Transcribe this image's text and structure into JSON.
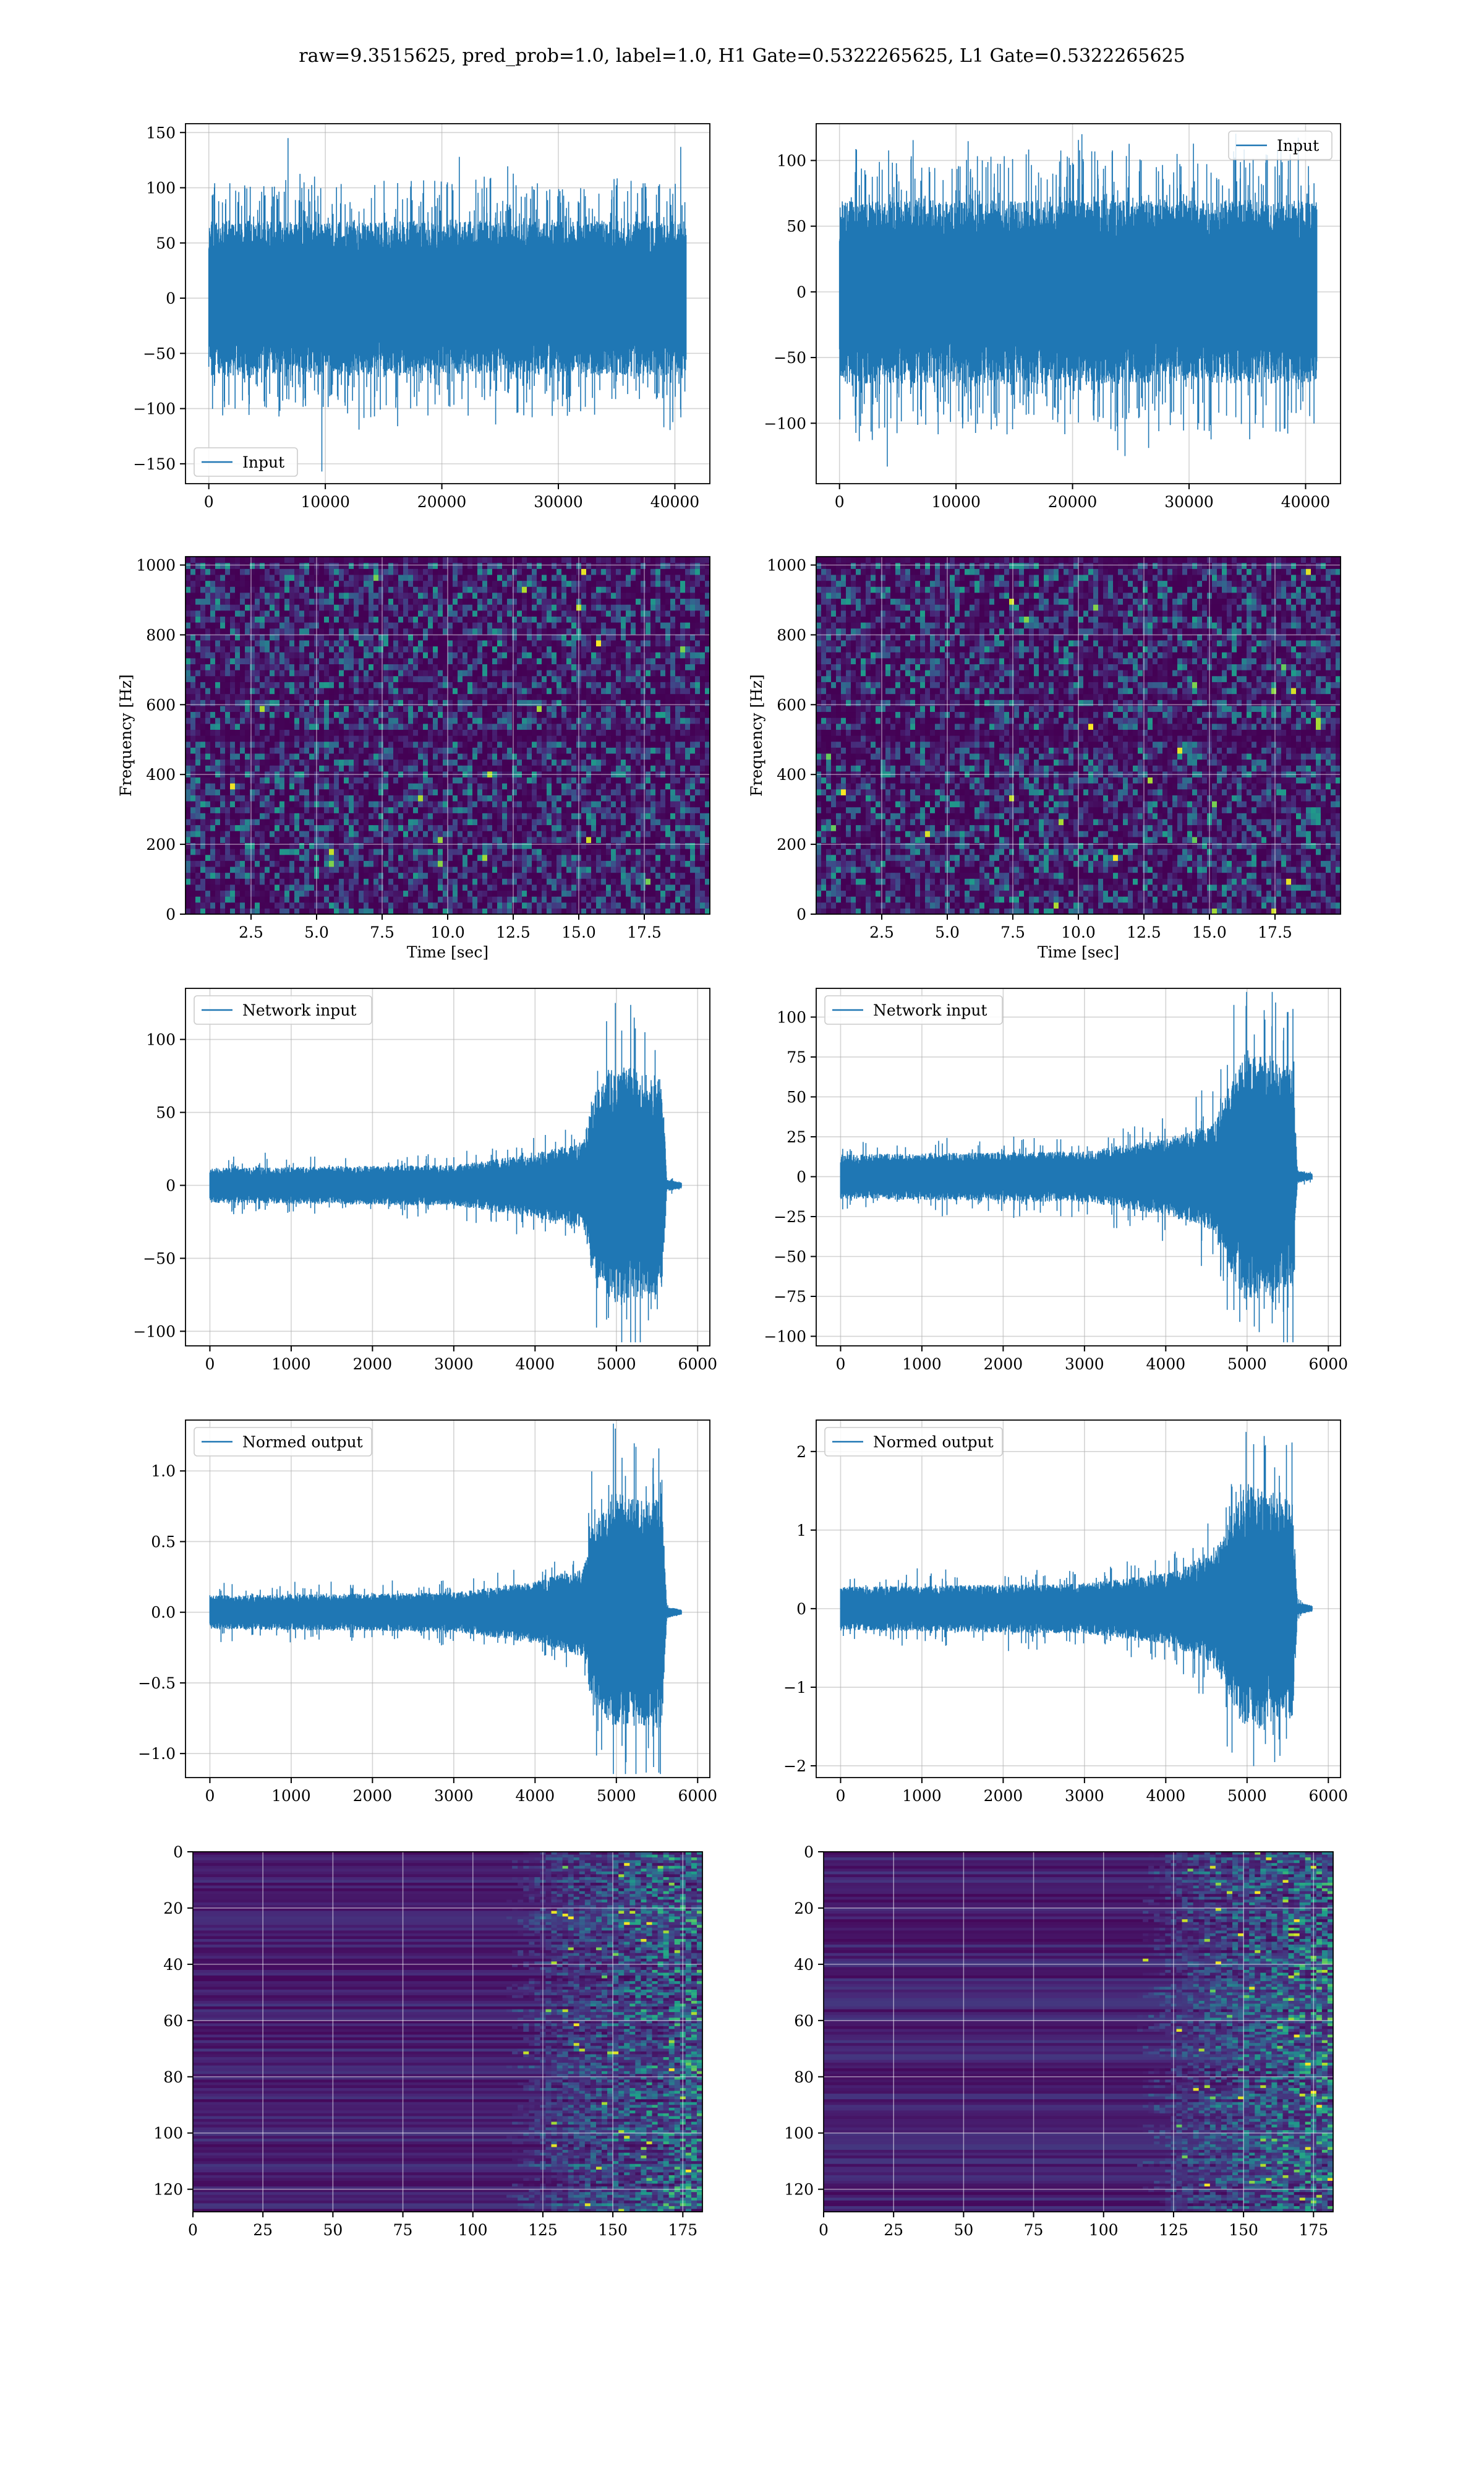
{
  "figure": {
    "suptitle": "raw=9.3515625, pred_prob=1.0, label=1.0, H1 Gate=0.5322265625, L1 Gate=0.5322265625"
  },
  "colors": {
    "line": "#1f77b4",
    "grid": "#b0b0b0",
    "viridis_low": "#440154",
    "viridis_mid": "#21918c",
    "viridis_high": "#fde725"
  },
  "chart_data": [
    {
      "id": "h1-input",
      "type": "line",
      "legend": "Input",
      "legend_loc": "lower-left",
      "xlim": [
        -2000,
        43000
      ],
      "ylim": [
        -168,
        158
      ],
      "xticks": [
        0,
        10000,
        20000,
        30000,
        40000
      ],
      "yticks": [
        -150,
        -100,
        -50,
        0,
        50,
        100,
        150
      ],
      "signal": {
        "x_start": 0,
        "x_end": 40960,
        "core_amp": 70,
        "spikes": [
          [
            6800,
            145
          ],
          [
            9700,
            -157
          ],
          [
            21500,
            128
          ],
          [
            40500,
            137
          ]
        ]
      }
    },
    {
      "id": "l1-input",
      "type": "line",
      "legend": "Input",
      "legend_loc": "upper-right",
      "xlim": [
        -2000,
        43000
      ],
      "ylim": [
        -146,
        128
      ],
      "xticks": [
        0,
        10000,
        20000,
        30000,
        40000
      ],
      "yticks": [
        -100,
        -50,
        0,
        50,
        100
      ],
      "signal": {
        "x_start": 0,
        "x_end": 40960,
        "core_amp": 70,
        "spikes": [
          [
            4100,
            -133
          ],
          [
            20800,
            120
          ],
          [
            24500,
            -125
          ]
        ]
      }
    },
    {
      "id": "h1-spectrogram",
      "type": "heatmap",
      "xlabel": "Time [sec]",
      "ylabel": "Frequency [Hz]",
      "xlim": [
        0,
        20
      ],
      "ylim": [
        0,
        1024
      ],
      "xticks": [
        2.5,
        5.0,
        7.5,
        10.0,
        12.5,
        15.0,
        17.5
      ],
      "yticks": [
        0,
        200,
        400,
        600,
        800,
        1000
      ]
    },
    {
      "id": "l1-spectrogram",
      "type": "heatmap",
      "xlabel": "Time [sec]",
      "ylabel": "Frequency [Hz]",
      "xlim": [
        0,
        20
      ],
      "ylim": [
        0,
        1024
      ],
      "xticks": [
        2.5,
        5.0,
        7.5,
        10.0,
        12.5,
        15.0,
        17.5
      ],
      "yticks": [
        0,
        200,
        400,
        600,
        800,
        1000
      ]
    },
    {
      "id": "h1-network-input",
      "type": "line",
      "legend": "Network input",
      "legend_loc": "upper-left",
      "xlim": [
        -300,
        6150
      ],
      "ylim": [
        -110,
        135
      ],
      "xticks": [
        0,
        1000,
        2000,
        3000,
        4000,
        5000,
        6000
      ],
      "yticks": [
        -100,
        -50,
        0,
        50,
        100
      ],
      "signal": {
        "x_start": 0,
        "x_end": 5800,
        "envelope": [
          [
            0,
            12
          ],
          [
            3000,
            14
          ],
          [
            4000,
            22
          ],
          [
            4600,
            30
          ],
          [
            4700,
            60
          ],
          [
            5000,
            85
          ],
          [
            5450,
            75
          ],
          [
            5560,
            78
          ],
          [
            5620,
            4
          ],
          [
            5800,
            2
          ]
        ],
        "peak": 125
      }
    },
    {
      "id": "l1-network-input",
      "type": "line",
      "legend": "Network input",
      "legend_loc": "upper-left",
      "xlim": [
        -300,
        6150
      ],
      "ylim": [
        -106,
        118
      ],
      "xticks": [
        0,
        1000,
        2000,
        3000,
        4000,
        5000,
        6000
      ],
      "yticks": [
        -100,
        -75,
        -50,
        -25,
        0,
        25,
        50,
        75,
        100
      ],
      "signal": {
        "x_start": 0,
        "x_end": 5800,
        "envelope": [
          [
            0,
            14
          ],
          [
            3000,
            16
          ],
          [
            4000,
            24
          ],
          [
            4600,
            34
          ],
          [
            4800,
            60
          ],
          [
            5000,
            80
          ],
          [
            5400,
            70
          ],
          [
            5560,
            70
          ],
          [
            5620,
            4
          ],
          [
            5800,
            2
          ]
        ],
        "peak": 107
      }
    },
    {
      "id": "h1-normed-output",
      "type": "line",
      "legend": "Normed output",
      "legend_loc": "upper-left",
      "xlim": [
        -300,
        6150
      ],
      "ylim": [
        -1.17,
        1.36
      ],
      "xticks": [
        0,
        1000,
        2000,
        3000,
        4000,
        5000,
        6000
      ],
      "yticks": [
        -1.0,
        -0.5,
        0.0,
        0.5,
        1.0
      ],
      "signal": {
        "x_start": 0,
        "x_end": 5800,
        "envelope": [
          [
            0,
            0.12
          ],
          [
            3000,
            0.14
          ],
          [
            4000,
            0.22
          ],
          [
            4600,
            0.32
          ],
          [
            4700,
            0.6
          ],
          [
            5000,
            0.85
          ],
          [
            5450,
            0.8
          ],
          [
            5560,
            0.85
          ],
          [
            5620,
            0.04
          ],
          [
            5800,
            0.02
          ]
        ],
        "peak": 1.3
      }
    },
    {
      "id": "l1-normed-output",
      "type": "line",
      "legend": "Normed output",
      "legend_loc": "upper-left",
      "xlim": [
        -300,
        6150
      ],
      "ylim": [
        -2.15,
        2.4
      ],
      "xticks": [
        0,
        1000,
        2000,
        3000,
        4000,
        5000,
        6000
      ],
      "yticks": [
        -2,
        -1,
        0,
        1,
        2
      ],
      "signal": {
        "x_start": 0,
        "x_end": 5800,
        "envelope": [
          [
            0,
            0.28
          ],
          [
            3000,
            0.32
          ],
          [
            4000,
            0.45
          ],
          [
            4600,
            0.7
          ],
          [
            4800,
            1.2
          ],
          [
            5000,
            1.6
          ],
          [
            5400,
            1.4
          ],
          [
            5560,
            1.4
          ],
          [
            5620,
            0.08
          ],
          [
            5800,
            0.04
          ]
        ],
        "peak": 2.25
      }
    },
    {
      "id": "h1-feature-map",
      "type": "heatmap",
      "xlim": [
        0,
        182
      ],
      "ylim": [
        128,
        0
      ],
      "xticks": [
        0,
        25,
        50,
        75,
        100,
        125,
        150,
        175
      ],
      "yticks": [
        0,
        20,
        40,
        60,
        80,
        100,
        120
      ]
    },
    {
      "id": "l1-feature-map",
      "type": "heatmap",
      "xlim": [
        0,
        182
      ],
      "ylim": [
        128,
        0
      ],
      "xticks": [
        0,
        25,
        50,
        75,
        100,
        125,
        150,
        175
      ],
      "yticks": [
        0,
        20,
        40,
        60,
        80,
        100,
        120
      ]
    }
  ]
}
